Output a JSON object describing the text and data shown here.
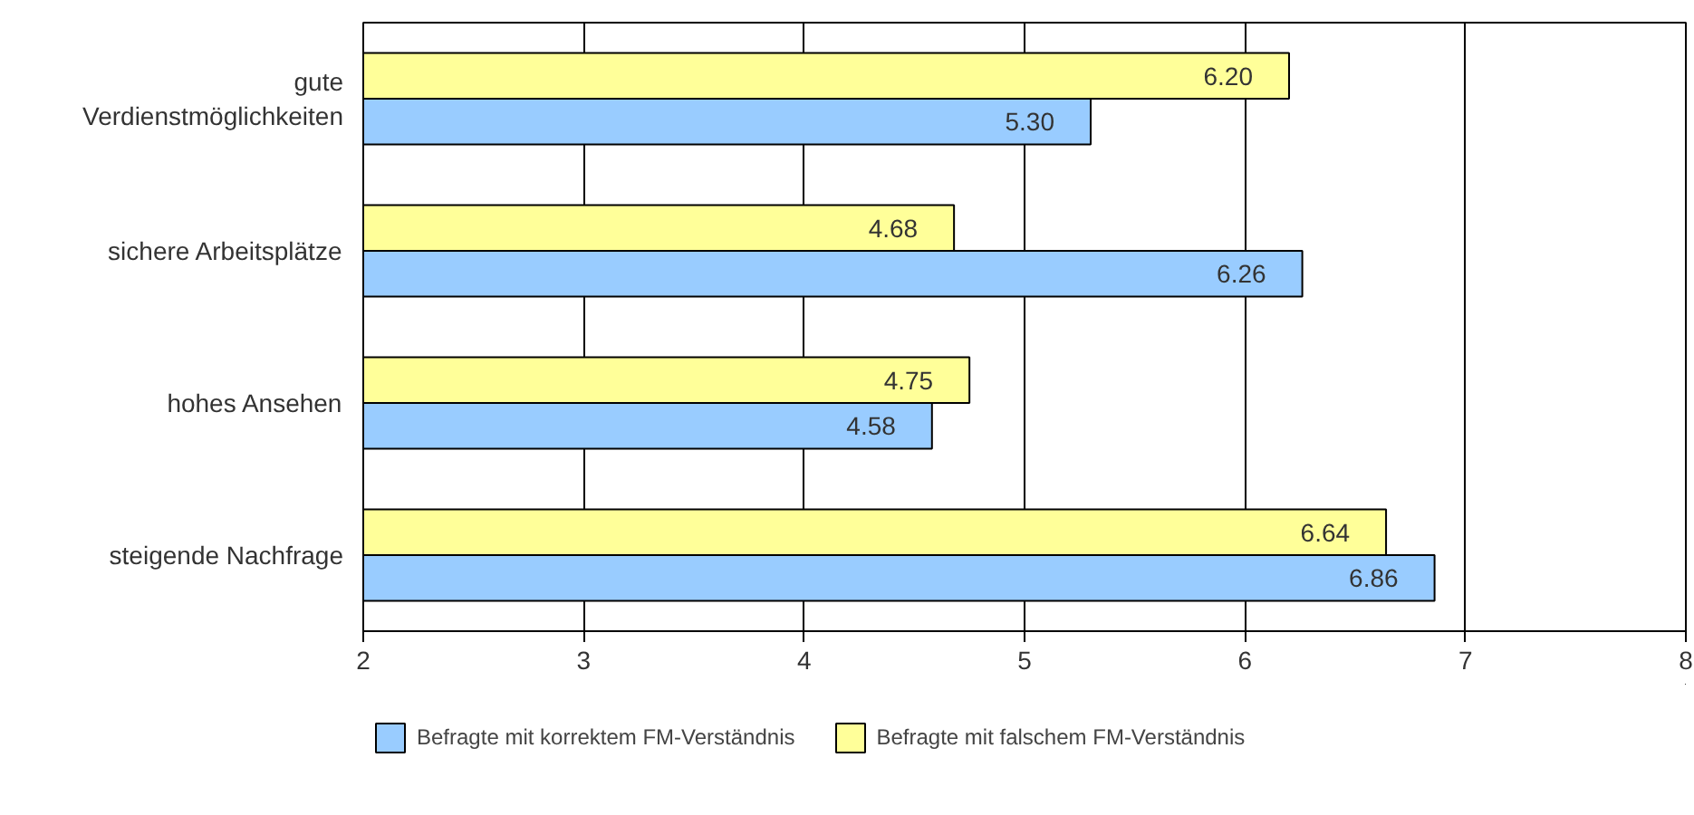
{
  "chart_data": {
    "type": "bar",
    "orientation": "horizontal",
    "categories": [
      "gute\nVerdienstmöglichkeiten",
      "sichere Arbeitsplätze",
      "hohes Ansehen",
      "steigende Nachfrage"
    ],
    "series": [
      {
        "name": "Befragte mit korrektem FM-Verständnis",
        "color": "#99ccff",
        "values": [
          5.3,
          6.26,
          4.58,
          6.86
        ],
        "value_labels": [
          "5.30",
          "6.26",
          "4.58",
          "6.86"
        ]
      },
      {
        "name": "Befragte mit falschem FM-Verständnis",
        "color": "#ffff99",
        "values": [
          6.2,
          4.68,
          4.75,
          6.64
        ],
        "value_labels": [
          "6.20",
          "4.68",
          "4.75",
          "6.64"
        ]
      }
    ],
    "xlim": [
      2,
      8
    ],
    "xticks": [
      2,
      3,
      4,
      5,
      6,
      7,
      8
    ],
    "grid": "x",
    "legend": "bottom"
  }
}
